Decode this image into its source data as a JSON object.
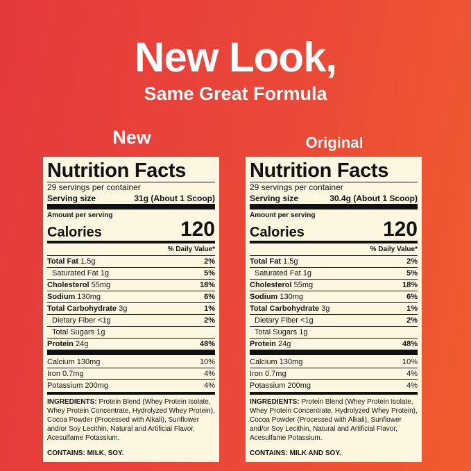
{
  "header": {
    "title": "New Look,",
    "subtitle": "Same Great Formula"
  },
  "labels": [
    {
      "tag": "New",
      "heading": "Nutrition Facts",
      "servings": "29 servings per container",
      "serving_size_label": "Serving size",
      "serving_size": "31g (About 1 Scoop)",
      "amount_per_serving": "Amount per serving",
      "calories_label": "Calories",
      "calories": "120",
      "dv_header": "% Daily Value*",
      "nutrients": [
        {
          "name": "Total Fat",
          "amount": "1.5g",
          "dv": "2%",
          "bold": true,
          "level": 0
        },
        {
          "name": "Saturated Fat 1g",
          "dv": "5%",
          "bold": false,
          "level": 1
        },
        {
          "name": "Cholesterol",
          "amount": "55mg",
          "dv": "18%",
          "bold": true,
          "level": 0
        },
        {
          "name": "Sodium",
          "amount": "130mg",
          "dv": "6%",
          "bold": true,
          "level": 0
        },
        {
          "name": "Total Carbohydrate",
          "amount": "3g",
          "dv": "1%",
          "bold": true,
          "level": 0
        },
        {
          "name": "Dietary Fiber <1g",
          "dv": "2%",
          "bold": false,
          "level": 1
        },
        {
          "name": "Total Sugars 1g",
          "bold": false,
          "level": 1
        },
        {
          "name": "Protein",
          "amount": "24g",
          "dv": "48%",
          "bold": true,
          "level": 0
        }
      ],
      "minerals": [
        {
          "name": "Calcium 130mg",
          "dv": "10%"
        },
        {
          "name": "Iron 0.7mg",
          "dv": "4%"
        },
        {
          "name": "Potassium 200mg",
          "dv": "4%"
        }
      ],
      "ingredients_label": "INGREDIENTS:",
      "ingredients": "Protein Blend (Whey Protein Isolate, Whey Protein Concentrate, Hydrolyzed Whey Protein), Cocoa Powder (Processed with Alkali), Sunflower and/or Soy Lecithin, Natural and Artificial Flavor, Acesulfame Potassium.",
      "contains": "CONTAINS: MILK, SOY."
    },
    {
      "tag": "Original",
      "heading": "Nutrition Facts",
      "servings": "29 servings per container",
      "serving_size_label": "Serving size",
      "serving_size": "30.4g (About 1 Scoop)",
      "amount_per_serving": "Amount per serving",
      "calories_label": "Calories",
      "calories": "120",
      "dv_header": "% Daily Value*",
      "nutrients": [
        {
          "name": "Total Fat",
          "amount": "1.5g",
          "dv": "2%",
          "bold": true,
          "level": 0
        },
        {
          "name": "Saturated Fat 1g",
          "dv": "5%",
          "bold": false,
          "level": 1
        },
        {
          "name": "Cholesterol",
          "amount": "55mg",
          "dv": "18%",
          "bold": true,
          "level": 0
        },
        {
          "name": "Sodium",
          "amount": "130mg",
          "dv": "6%",
          "bold": true,
          "level": 0
        },
        {
          "name": "Total Carbohydrate",
          "amount": "3g",
          "dv": "1%",
          "bold": true,
          "level": 0
        },
        {
          "name": "Dietary Fiber <1g",
          "dv": "2%",
          "bold": false,
          "level": 1
        },
        {
          "name": "Total Sugars 1g",
          "bold": false,
          "level": 1
        },
        {
          "name": "Protein",
          "amount": "24g",
          "dv": "48%",
          "bold": true,
          "level": 0
        }
      ],
      "minerals": [
        {
          "name": "Calcium 130mg",
          "dv": "10%"
        },
        {
          "name": "Iron 0.7mg",
          "dv": "4%"
        },
        {
          "name": "Potassium 200mg",
          "dv": "4%"
        }
      ],
      "ingredients_label": "INGREDIENTS:",
      "ingredients": "Protein Blend (Whey Protein Isolate, Whey Protein Concentrate, Hydrolyzed Whey Protein), Cocoa Powder (Processed with Alkali), Sunflower and/or Soy Lecithin, Natural and Artificial Flavor, Acesulfame Potassium.",
      "contains": "CONTAINS: MILK AND SOY."
    }
  ]
}
